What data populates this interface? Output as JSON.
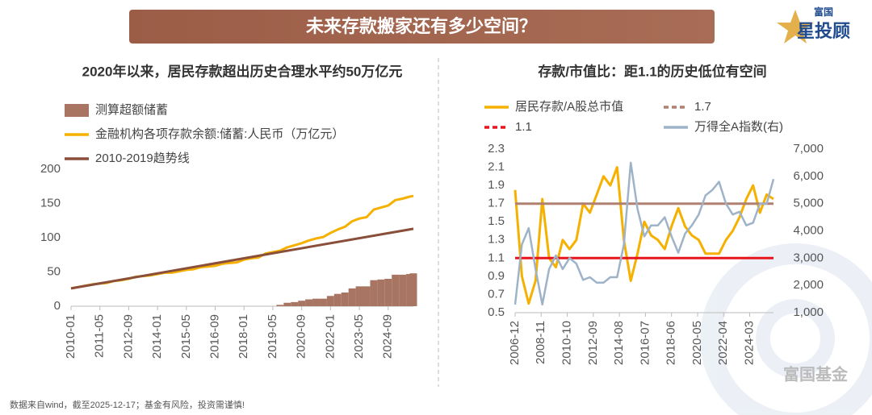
{
  "header": {
    "title": "未来存款搬家还有多少空间？"
  },
  "logo": {
    "top": "富国",
    "main": "星投顾"
  },
  "watermark": "富国基金",
  "footer": "数据来自wind，截至2025-12-17；基金有风险，投资需谨慎!",
  "chart_data": [
    {
      "type": "line",
      "title": "2020年以来，居民存款超出历史合理水平约50万亿元",
      "x": [
        "2010-01",
        "2010-05",
        "2010-09",
        "2011-01",
        "2011-05",
        "2011-09",
        "2012-01",
        "2012-05",
        "2012-09",
        "2013-01",
        "2013-05",
        "2013-09",
        "2014-01",
        "2014-05",
        "2014-09",
        "2015-01",
        "2015-05",
        "2015-09",
        "2016-01",
        "2016-05",
        "2016-09",
        "2017-01",
        "2017-05",
        "2017-09",
        "2018-01",
        "2018-05",
        "2018-09",
        "2019-01",
        "2019-05",
        "2019-09",
        "2020-01",
        "2020-05",
        "2020-09",
        "2021-01",
        "2021-05",
        "2021-09",
        "2022-01",
        "2022-05",
        "2022-09",
        "2023-01",
        "2023-05",
        "2023-09",
        "2024-01",
        "2024-05",
        "2024-09",
        "2025-01",
        "2025-05",
        "2025-09",
        "2025-11"
      ],
      "xlim": [
        "2010-01",
        "2025-11"
      ],
      "xticks": [
        "2010-01",
        "2011-05",
        "2012-09",
        "2014-01",
        "2015-05",
        "2016-09",
        "2018-01",
        "2019-05",
        "2020-09",
        "2022-01",
        "2023-05",
        "2024-09"
      ],
      "ylim": [
        0,
        200
      ],
      "yticks": [
        0,
        50,
        100,
        150,
        200
      ],
      "series": [
        {
          "name": "测算超额储蓄",
          "type": "bar",
          "color": "#a87563",
          "x": [
            "2019-09",
            "2020-01",
            "2020-05",
            "2020-09",
            "2021-01",
            "2021-05",
            "2021-09",
            "2022-01",
            "2022-05",
            "2022-09",
            "2023-01",
            "2023-05",
            "2023-09",
            "2024-01",
            "2024-05",
            "2024-09",
            "2025-01",
            "2025-05",
            "2025-09",
            "2025-11"
          ],
          "values": [
            2,
            5,
            6,
            8,
            10,
            11,
            11,
            15,
            18,
            20,
            26,
            29,
            29,
            38,
            39,
            40,
            46,
            46,
            47,
            48
          ]
        },
        {
          "name": "金融机构各项存款余额:储蓄:人民币（万亿元）",
          "type": "line",
          "color": "#f5b000",
          "values": [
            26,
            28,
            30,
            32,
            33,
            34,
            37,
            38,
            40,
            43,
            44,
            45,
            47,
            49,
            49,
            51,
            53,
            54,
            57,
            58,
            59,
            62,
            63,
            64,
            68,
            70,
            71,
            77,
            79,
            81,
            86,
            89,
            92,
            96,
            99,
            101,
            107,
            112,
            116,
            124,
            128,
            130,
            141,
            144,
            147,
            155,
            157,
            160,
            161
          ]
        },
        {
          "name": "2010-2019趋势线",
          "type": "line",
          "color": "#8a4f3a",
          "x": [
            "2010-01",
            "2025-11"
          ],
          "values": [
            26,
            113
          ]
        }
      ]
    },
    {
      "type": "line",
      "title": "存款/市值比：距1.1的历史低位有空间",
      "x": [
        "2006-12",
        "2007-06",
        "2007-12",
        "2008-06",
        "2008-12",
        "2009-06",
        "2009-12",
        "2010-06",
        "2010-12",
        "2011-06",
        "2011-12",
        "2012-06",
        "2012-12",
        "2013-06",
        "2013-12",
        "2014-06",
        "2014-12",
        "2015-06",
        "2015-12",
        "2016-06",
        "2016-12",
        "2017-06",
        "2017-12",
        "2018-06",
        "2018-12",
        "2019-06",
        "2019-12",
        "2020-06",
        "2020-12",
        "2021-06",
        "2021-12",
        "2022-06",
        "2022-12",
        "2023-06",
        "2023-12",
        "2024-06",
        "2024-12",
        "2025-06",
        "2025-12"
      ],
      "xlim": [
        "2006-12",
        "2025-12"
      ],
      "xticks": [
        "2006-12",
        "2008-11",
        "2010-10",
        "2012-09",
        "2014-08",
        "2016-07",
        "2018-06",
        "2020-05",
        "2022-04",
        "2024-03"
      ],
      "ylim": [
        0.5,
        2.3
      ],
      "yticks": [
        0.5,
        0.7,
        0.9,
        1.1,
        1.3,
        1.5,
        1.7,
        1.9,
        2.1,
        2.3
      ],
      "y2lim": [
        1000,
        7000
      ],
      "y2ticks": [
        {
          "value": 1000,
          "label": "1,000"
        },
        {
          "value": 2000,
          "label": "2,000"
        },
        {
          "value": 3000,
          "label": "3,000"
        },
        {
          "value": 4000,
          "label": "4,000"
        },
        {
          "value": 5000,
          "label": "5,000"
        },
        {
          "value": 6000,
          "label": "6,000"
        },
        {
          "value": 7000,
          "label": "7,000"
        }
      ],
      "series": [
        {
          "name": "居民存款/A股总市值",
          "type": "line",
          "color": "#f5b000",
          "values": [
            1.85,
            0.9,
            0.6,
            0.85,
            1.75,
            1.1,
            1.0,
            1.3,
            1.2,
            1.3,
            1.7,
            1.6,
            1.8,
            2.0,
            1.9,
            2.1,
            1.3,
            0.85,
            1.15,
            1.5,
            1.35,
            1.3,
            1.2,
            1.45,
            1.65,
            1.45,
            1.35,
            1.3,
            1.15,
            1.15,
            1.15,
            1.3,
            1.4,
            1.55,
            1.75,
            1.9,
            1.6,
            1.8,
            1.75
          ]
        },
        {
          "name": "1.7",
          "type": "line",
          "color": "#b08070",
          "legend_dash": true,
          "x": [
            "2006-12",
            "2025-12"
          ],
          "values": [
            1.7,
            1.7
          ]
        },
        {
          "name": "1.1",
          "type": "line",
          "color": "#e8141b",
          "legend_dash": true,
          "x": [
            "2006-12",
            "2025-12"
          ],
          "values": [
            1.1,
            1.1
          ]
        },
        {
          "name": "万得全A指数(右)",
          "type": "line",
          "color": "#9fb3c8",
          "axis": "y2",
          "values": [
            1300,
            3500,
            4100,
            2600,
            1300,
            2600,
            3100,
            2600,
            3000,
            2800,
            2200,
            2300,
            2100,
            2100,
            2300,
            2300,
            3500,
            6500,
            4800,
            3800,
            4200,
            4200,
            4500,
            3800,
            3200,
            3900,
            4200,
            4600,
            5300,
            5500,
            5800,
            5000,
            4600,
            4700,
            4200,
            4300,
            5000,
            5000,
            5900
          ]
        }
      ]
    }
  ]
}
